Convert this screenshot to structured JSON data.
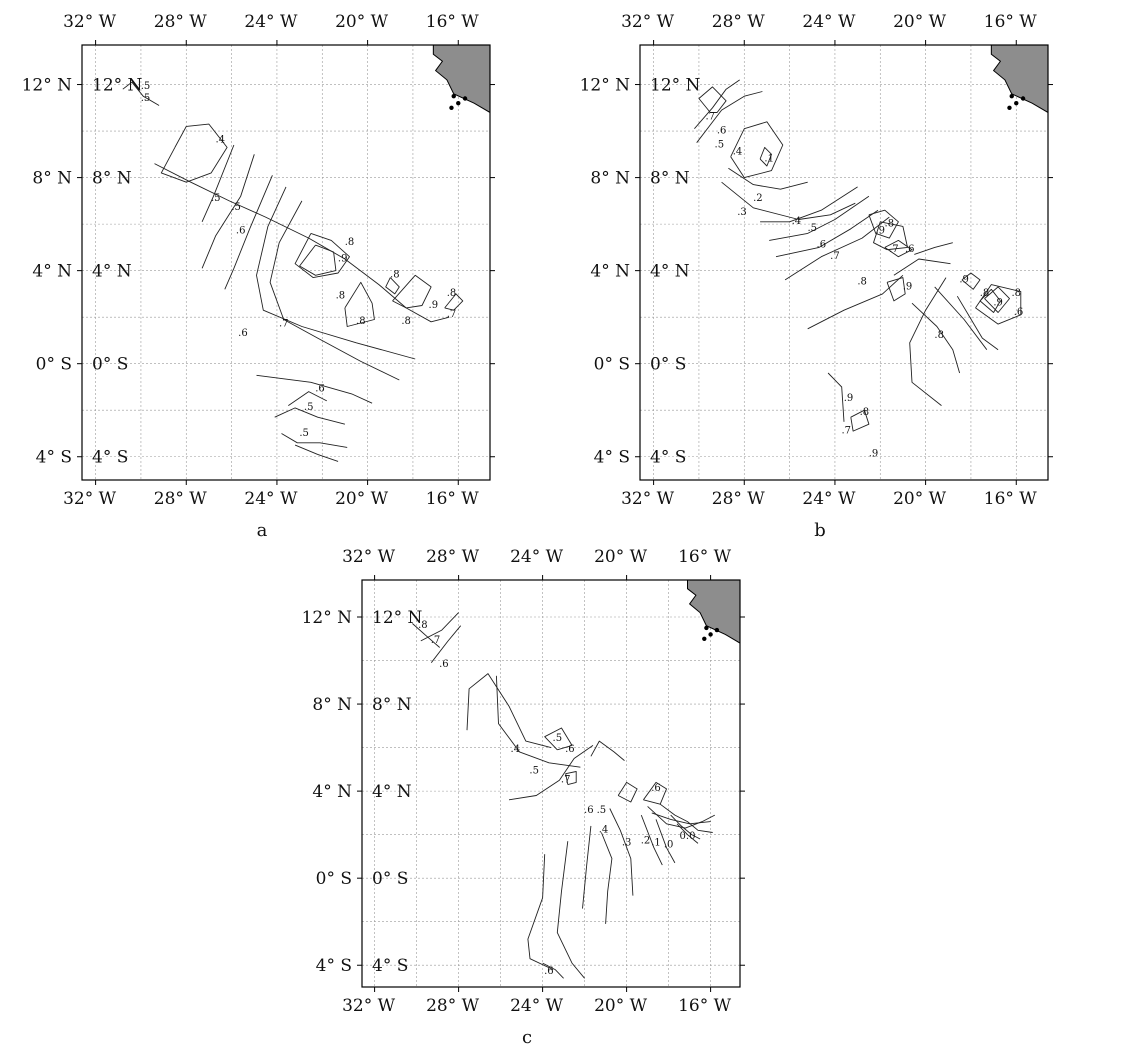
{
  "figure": {
    "panels": [
      {
        "id": "a",
        "caption": "a",
        "lon_ticks": [
          "32° W",
          "28° W",
          "24° W",
          "20° W",
          "16° W"
        ],
        "lat_ticks": [
          "12° N",
          "8° N",
          "4° N",
          "0° S",
          "4° S"
        ],
        "lon_range": [
          -32.6,
          -14.6
        ],
        "lat_range": [
          -5.0,
          13.7
        ],
        "contour_labels": [
          {
            "text": ".5",
            "lon": -29.8,
            "lat": 11.8
          },
          {
            "text": ".5",
            "lon": -29.8,
            "lat": 11.3
          },
          {
            "text": ".4",
            "lon": -26.5,
            "lat": 9.5
          },
          {
            "text": ".5",
            "lon": -26.7,
            "lat": 7.0
          },
          {
            "text": ".5",
            "lon": -25.8,
            "lat": 6.6
          },
          {
            "text": ".6",
            "lon": -25.6,
            "lat": 5.6
          },
          {
            "text": ".9",
            "lon": -21.1,
            "lat": 4.4
          },
          {
            "text": ".8",
            "lon": -20.8,
            "lat": 5.1
          },
          {
            "text": ".8",
            "lon": -18.8,
            "lat": 3.7
          },
          {
            "text": ".8",
            "lon": -21.2,
            "lat": 2.8
          },
          {
            "text": ".8",
            "lon": -20.3,
            "lat": 1.7
          },
          {
            "text": ".8",
            "lon": -18.3,
            "lat": 1.7
          },
          {
            "text": ".9",
            "lon": -17.1,
            "lat": 2.4
          },
          {
            "text": ".8",
            "lon": -16.3,
            "lat": 2.9
          },
          {
            "text": ".7",
            "lon": -16.3,
            "lat": 2.0
          },
          {
            "text": ".7",
            "lon": -23.7,
            "lat": 1.6
          },
          {
            "text": ".6",
            "lon": -25.5,
            "lat": 1.2
          },
          {
            "text": ".6",
            "lon": -22.1,
            "lat": -1.2
          },
          {
            "text": ".5",
            "lon": -22.6,
            "lat": -2.0
          },
          {
            "text": ".5",
            "lon": -22.8,
            "lat": -3.1
          }
        ]
      },
      {
        "id": "b",
        "caption": "b",
        "lon_ticks": [
          "32° W",
          "28° W",
          "24° W",
          "20° W",
          "16° W"
        ],
        "lat_ticks": [
          "12° N",
          "8° N",
          "4° N",
          "0° S",
          "4° S"
        ],
        "lon_range": [
          -32.6,
          -14.6
        ],
        "lat_range": [
          -5.0,
          13.7
        ],
        "contour_labels": [
          {
            "text": ".7",
            "lon": -29.5,
            "lat": 10.5
          },
          {
            "text": ".6",
            "lon": -29.0,
            "lat": 9.9
          },
          {
            "text": ".5",
            "lon": -29.1,
            "lat": 9.3
          },
          {
            "text": ".4",
            "lon": -28.3,
            "lat": 9.0
          },
          {
            "text": ".1",
            "lon": -26.9,
            "lat": 8.7
          },
          {
            "text": ".2",
            "lon": -27.4,
            "lat": 7.0
          },
          {
            "text": ".3",
            "lon": -28.1,
            "lat": 6.4
          },
          {
            "text": ".4",
            "lon": -25.7,
            "lat": 6.0
          },
          {
            "text": ".5",
            "lon": -25.0,
            "lat": 5.7
          },
          {
            "text": ".6",
            "lon": -24.6,
            "lat": 5.0
          },
          {
            "text": ".7",
            "lon": -24.0,
            "lat": 4.5
          },
          {
            "text": ".9",
            "lon": -22.0,
            "lat": 5.6
          },
          {
            "text": ".8",
            "lon": -21.6,
            "lat": 5.9
          },
          {
            "text": ".7",
            "lon": -21.4,
            "lat": 4.8
          },
          {
            "text": ".6",
            "lon": -20.7,
            "lat": 4.8
          },
          {
            "text": ".8",
            "lon": -22.8,
            "lat": 3.4
          },
          {
            "text": ".9",
            "lon": -20.8,
            "lat": 3.2
          },
          {
            "text": ".9",
            "lon": -18.3,
            "lat": 3.5
          },
          {
            "text": ".8",
            "lon": -17.4,
            "lat": 2.9
          },
          {
            "text": ".9",
            "lon": -16.8,
            "lat": 2.5
          },
          {
            "text": ".8",
            "lon": -16.0,
            "lat": 2.9
          },
          {
            "text": ".6",
            "lon": -15.9,
            "lat": 2.1
          },
          {
            "text": ".8",
            "lon": -19.4,
            "lat": 1.1
          },
          {
            "text": ".9",
            "lon": -23.4,
            "lat": -1.6
          },
          {
            "text": ".8",
            "lon": -22.7,
            "lat": -2.2
          },
          {
            "text": ".7",
            "lon": -23.5,
            "lat": -3.0
          },
          {
            "text": ".9",
            "lon": -22.3,
            "lat": -4.0
          }
        ]
      },
      {
        "id": "c",
        "caption": "c",
        "lon_ticks": [
          "32° W",
          "28° W",
          "24° W",
          "20° W",
          "16° W"
        ],
        "lat_ticks": [
          "12° N",
          "8° N",
          "4° N",
          "0° S",
          "4° S"
        ],
        "lon_range": [
          -32.6,
          -14.6
        ],
        "lat_range": [
          -5.0,
          13.7
        ],
        "contour_labels": [
          {
            "text": ".8",
            "lon": -29.7,
            "lat": 11.5
          },
          {
            "text": ".7",
            "lon": -29.1,
            "lat": 10.8
          },
          {
            "text": ".6",
            "lon": -28.7,
            "lat": 9.7
          },
          {
            "text": ".4",
            "lon": -25.3,
            "lat": 5.8
          },
          {
            "text": ".5",
            "lon": -24.4,
            "lat": 4.8
          },
          {
            "text": ".5",
            "lon": -23.3,
            "lat": 6.3
          },
          {
            "text": ".6",
            "lon": -22.7,
            "lat": 5.8
          },
          {
            "text": ".7",
            "lon": -22.9,
            "lat": 4.4
          },
          {
            "text": ".6",
            "lon": -21.8,
            "lat": 3.0
          },
          {
            "text": ".5",
            "lon": -21.2,
            "lat": 3.0
          },
          {
            "text": ".4",
            "lon": -21.1,
            "lat": 2.1
          },
          {
            "text": ".6",
            "lon": -18.6,
            "lat": 4.0
          },
          {
            "text": ".3",
            "lon": -20.0,
            "lat": 1.5
          },
          {
            "text": ".2",
            "lon": -19.1,
            "lat": 1.6
          },
          {
            "text": ".1",
            "lon": -18.6,
            "lat": 1.5
          },
          {
            "text": ".0",
            "lon": -18.0,
            "lat": 1.4
          },
          {
            "text": "0.0",
            "lon": -17.1,
            "lat": 1.8
          },
          {
            "text": ".6",
            "lon": -23.7,
            "lat": -4.4
          }
        ]
      }
    ],
    "colors": {
      "frame": "#000000",
      "grid": "#9a9a9a",
      "contour": "#222222",
      "land": "#8d8d8d"
    }
  }
}
